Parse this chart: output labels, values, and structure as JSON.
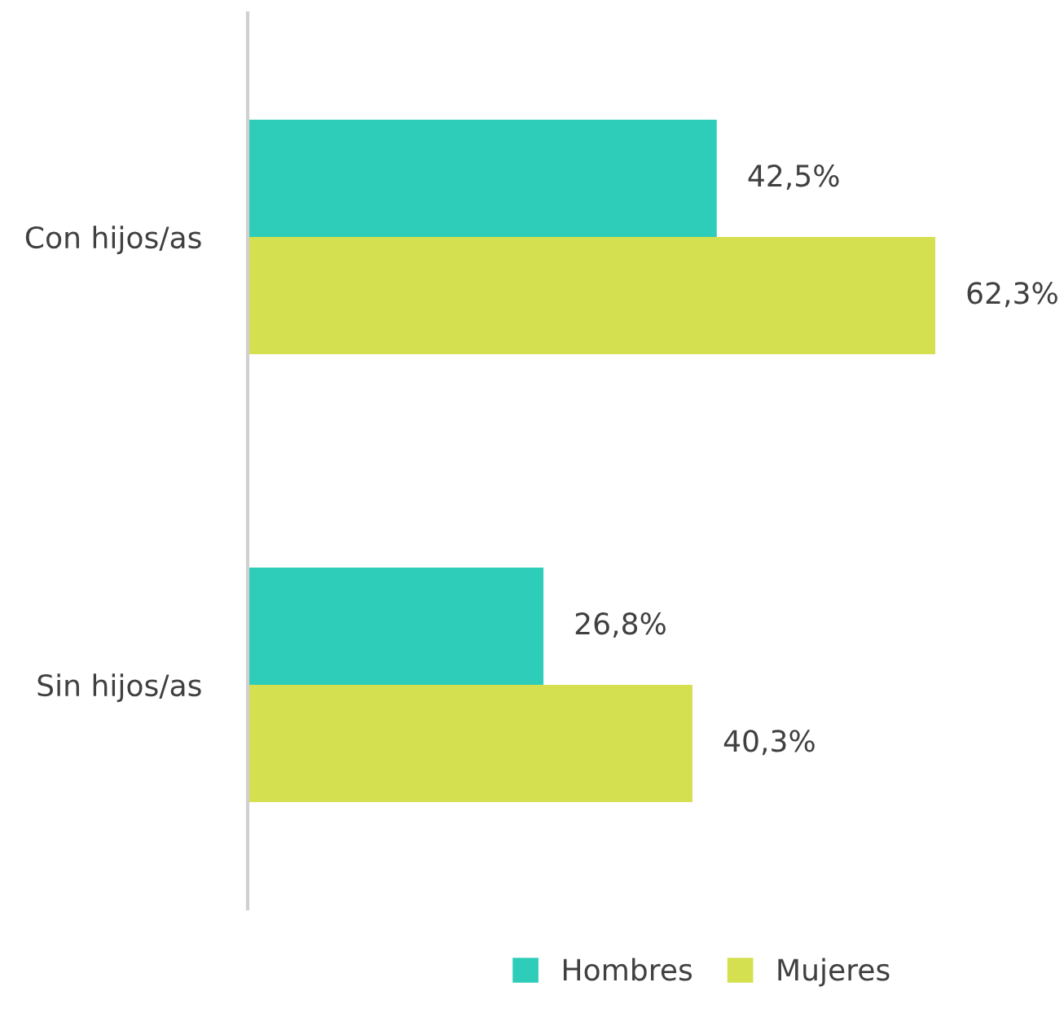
{
  "chart_data": {
    "type": "bar",
    "orientation": "horizontal",
    "categories": [
      "Con hijos/as",
      "Sin hijos/as"
    ],
    "series": [
      {
        "name": "Hombres",
        "color": "#2ecdb9",
        "values": [
          42.5,
          26.8
        ],
        "value_labels": [
          "42,5%",
          "26,8%"
        ]
      },
      {
        "name": "Mujeres",
        "color": "#d4e04f",
        "values": [
          62.3,
          40.3
        ],
        "value_labels": [
          "62,3%",
          "40,3%"
        ]
      }
    ],
    "legend": "bottom",
    "grid": false
  }
}
